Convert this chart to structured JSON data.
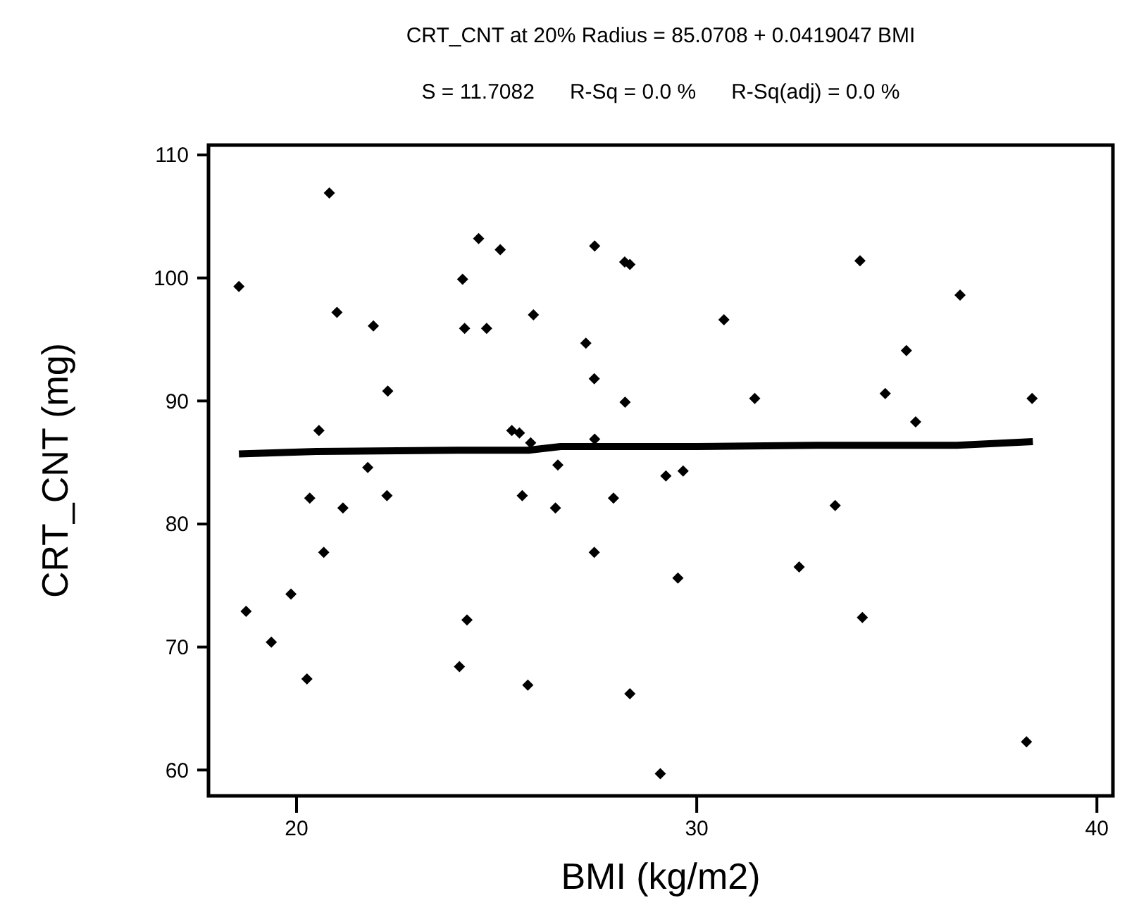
{
  "chart_data": {
    "type": "scatter",
    "title": "CRT_CNT at 20% Radius = 85.0708 + 0.0419047 BMI",
    "subtitle": "S = 11.7082      R-Sq = 0.0 %      R-Sq(adj) = 0.0 %",
    "xlabel": "BMI (kg/m2)",
    "ylabel": "CRT_CNT (mg)",
    "xlim": [
      17.8,
      40.4
    ],
    "ylim": [
      57.9,
      110.8
    ],
    "xticks": [
      20,
      30,
      40
    ],
    "yticks": [
      60,
      70,
      80,
      90,
      100,
      110
    ],
    "marker": "diamond",
    "series": [
      {
        "color": "#000000",
        "x": [
          20.82,
          18.56,
          24.55,
          25.09,
          27.45,
          28.2,
          28.33,
          24.15,
          21.01,
          25.92,
          21.92,
          24.2,
          24.75,
          27.23,
          27.44,
          28.21,
          22.28,
          20.56,
          25.38,
          25.57,
          25.85,
          27.45,
          34.08,
          36.58,
          30.68,
          35.24,
          34.71,
          31.45,
          38.38,
          35.47,
          21.78,
          26.53,
          20.33,
          21.16,
          22.26,
          25.64,
          26.47,
          27.92,
          20.68,
          27.44,
          19.86,
          18.74,
          24.26,
          19.37,
          24.07,
          20.26,
          25.78,
          28.33,
          29.23,
          29.66,
          33.46,
          29.53,
          32.56,
          34.14,
          38.24,
          29.09
        ],
        "values": [
          106.9,
          99.3,
          103.2,
          102.3,
          102.6,
          101.3,
          101.1,
          99.9,
          97.2,
          97.0,
          96.1,
          95.9,
          95.9,
          94.7,
          91.8,
          89.9,
          90.8,
          87.6,
          87.6,
          87.4,
          86.6,
          86.9,
          101.4,
          98.6,
          96.6,
          94.1,
          90.6,
          90.2,
          90.2,
          88.3,
          84.6,
          84.8,
          82.1,
          81.3,
          82.3,
          82.3,
          81.3,
          82.1,
          77.7,
          77.7,
          74.3,
          72.9,
          72.2,
          70.4,
          68.4,
          67.4,
          66.9,
          66.2,
          83.9,
          84.3,
          81.5,
          75.6,
          76.5,
          72.4,
          62.3,
          59.7
        ]
      },
      {
        "type": "line",
        "color": "#000000",
        "marker": "none",
        "line_style": "solid",
        "x": [
          18.56,
          20.5,
          24,
          25.8,
          26.6,
          30,
          33,
          36.5,
          38.4
        ],
        "values": [
          85.7,
          85.9,
          86.0,
          86.0,
          86.3,
          86.3,
          86.4,
          86.4,
          86.7
        ]
      }
    ]
  }
}
